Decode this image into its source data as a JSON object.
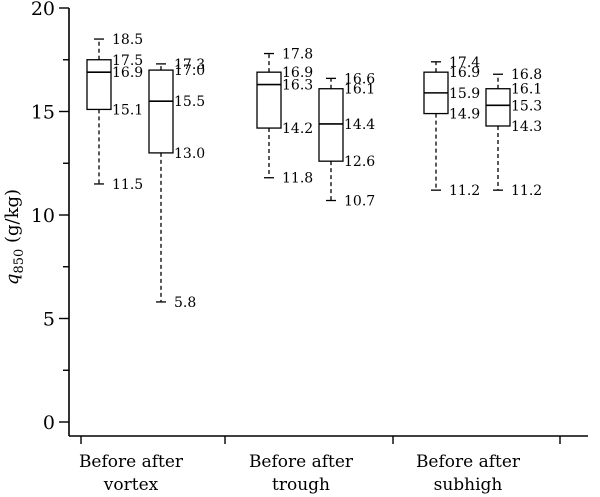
{
  "chart_data": {
    "type": "box",
    "ylabel": {
      "symbol": "q",
      "subscript": "850",
      "unit": " (g/kg)"
    },
    "ylim": [
      0,
      20
    ],
    "yticks": [
      0,
      5,
      10,
      15,
      20
    ],
    "ytick_labels": [
      "0",
      "5",
      "10",
      "15",
      "20"
    ],
    "grid": false,
    "groups": [
      {
        "label_line1": "Before after",
        "label_line2": "vortex"
      },
      {
        "label_line1": "Before after",
        "label_line2": "trough"
      },
      {
        "label_line1": "Before after",
        "label_line2": "subhigh"
      }
    ],
    "boxes": [
      {
        "group": 0,
        "position": "before",
        "min": 11.5,
        "q1": 15.1,
        "median": 16.9,
        "q3": 17.5,
        "max": 18.5,
        "labels": {
          "max": "18.5",
          "q3": "17.5",
          "median": "16.9",
          "q1": "15.1",
          "min": "11.5"
        }
      },
      {
        "group": 0,
        "position": "after",
        "min": 5.8,
        "q1": 13.0,
        "median": 15.5,
        "q3": 17.0,
        "max": 17.3,
        "labels": {
          "max": "17.3",
          "q3": "17.0",
          "median": "15.5",
          "q1": "13.0",
          "min": "5.8"
        }
      },
      {
        "group": 1,
        "position": "before",
        "min": 11.8,
        "q1": 14.2,
        "median": 16.3,
        "q3": 16.9,
        "max": 17.8,
        "labels": {
          "max": "17.8",
          "q3": "16.9",
          "median": "16.3",
          "q1": "14.2",
          "min": "11.8"
        }
      },
      {
        "group": 1,
        "position": "after",
        "min": 10.7,
        "q1": 12.6,
        "median": 14.4,
        "q3": 16.1,
        "max": 16.6,
        "labels": {
          "max": "16.6",
          "q3": "16.1",
          "median": "14.4",
          "q1": "12.6",
          "min": "10.7"
        }
      },
      {
        "group": 2,
        "position": "before",
        "min": 11.2,
        "q1": 14.9,
        "median": 15.9,
        "q3": 16.9,
        "max": 17.4,
        "labels": {
          "max": "17.4",
          "q3": "16.9",
          "median": "15.9",
          "q1": "14.9",
          "min": "11.2"
        }
      },
      {
        "group": 2,
        "position": "after",
        "min": 11.2,
        "q1": 14.3,
        "median": 15.3,
        "q3": 16.1,
        "max": 16.8,
        "labels": {
          "max": "16.8",
          "q3": "16.1",
          "median": "15.3",
          "q1": "14.3",
          "min": "11.2"
        }
      }
    ]
  }
}
